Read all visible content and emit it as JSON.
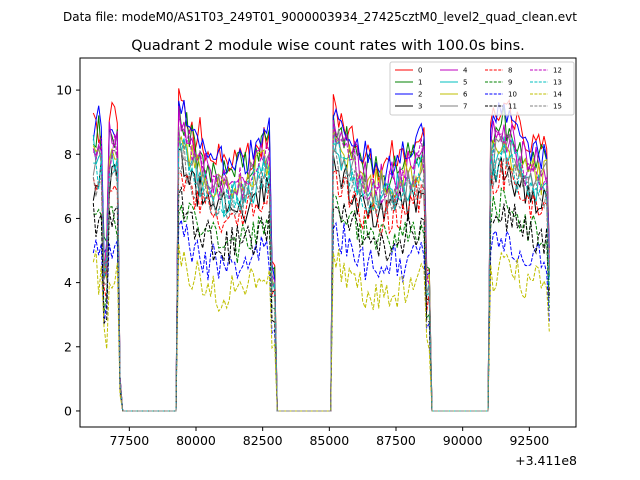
{
  "figure": {
    "suptitle": "Data file: modeM0/AS1T03_249T01_9000003934_27425cztM0_level2_quad_clean.evt"
  },
  "chart_data": {
    "type": "line",
    "title": "Quadrant 2 module wise count rates with 100.0s bins.",
    "xlabel": "",
    "ylabel": "",
    "x_offset_label": "+3.411e8",
    "xlim": [
      75650,
      94250
    ],
    "ylim": [
      -0.5,
      11
    ],
    "xticks": [
      77500,
      80000,
      82500,
      85000,
      87500,
      90000,
      92500
    ],
    "xtick_labels": [
      "77500",
      "80000",
      "82500",
      "85000",
      "87500",
      "90000",
      "92500"
    ],
    "yticks": [
      0,
      2,
      4,
      6,
      8,
      10
    ],
    "ytick_labels": [
      "0",
      "2",
      "4",
      "6",
      "8",
      "10"
    ],
    "legend": {
      "position": "top-right",
      "columns": 4
    },
    "x_start": 76100,
    "bin_width": 100,
    "segments": [
      {
        "start": 76100,
        "end": 77200,
        "shape": "orbit1"
      },
      {
        "start": 77200,
        "end": 79300,
        "shape": "zero"
      },
      {
        "start": 79300,
        "end": 83000,
        "shape": "orbit2"
      },
      {
        "start": 83000,
        "end": 85100,
        "shape": "zero"
      },
      {
        "start": 85100,
        "end": 88800,
        "shape": "orbit2"
      },
      {
        "start": 88800,
        "end": 91000,
        "shape": "zero"
      },
      {
        "start": 91000,
        "end": 93300,
        "shape": "orbit3"
      }
    ],
    "series": [
      {
        "name": "0",
        "color": "#ff0000",
        "dash": "solid",
        "level": 9.0
      },
      {
        "name": "1",
        "color": "#008000",
        "dash": "solid",
        "level": 8.6
      },
      {
        "name": "2",
        "color": "#0000ff",
        "dash": "solid",
        "level": 8.9
      },
      {
        "name": "3",
        "color": "#000000",
        "dash": "solid",
        "level": 7.2
      },
      {
        "name": "4",
        "color": "#bf00bf",
        "dash": "solid",
        "level": 8.4
      },
      {
        "name": "5",
        "color": "#00bfbf",
        "dash": "solid",
        "level": 7.8
      },
      {
        "name": "6",
        "color": "#bfbf00",
        "dash": "solid",
        "level": 8.0
      },
      {
        "name": "7",
        "color": "#808080",
        "dash": "solid",
        "level": 7.9
      },
      {
        "name": "8",
        "color": "#ff0000",
        "dash": "dashed",
        "level": 7.0
      },
      {
        "name": "9",
        "color": "#008000",
        "dash": "dashed",
        "level": 6.1
      },
      {
        "name": "10",
        "color": "#0000ff",
        "dash": "dashed",
        "level": 5.2
      },
      {
        "name": "11",
        "color": "#000000",
        "dash": "dashed",
        "level": 6.0
      },
      {
        "name": "12",
        "color": "#bf00bf",
        "dash": "dashed",
        "level": 8.1
      },
      {
        "name": "13",
        "color": "#00bfbf",
        "dash": "dashed",
        "level": 7.6
      },
      {
        "name": "14",
        "color": "#bfbf00",
        "dash": "dashed",
        "level": 4.3
      },
      {
        "name": "15",
        "color": "#808080",
        "dash": "dashed",
        "level": 7.4
      }
    ]
  }
}
